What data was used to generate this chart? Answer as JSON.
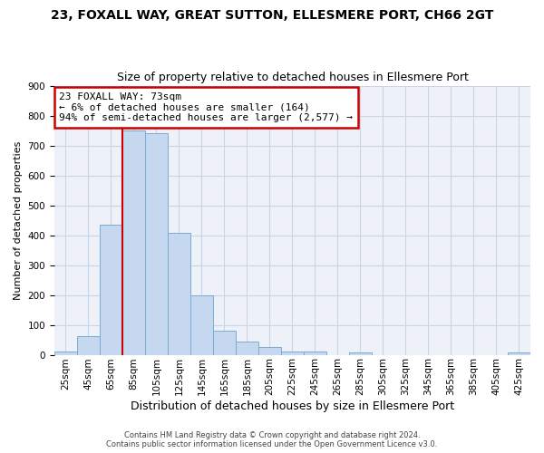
{
  "title1": "23, FOXALL WAY, GREAT SUTTON, ELLESMERE PORT, CH66 2GT",
  "title2": "Size of property relative to detached houses in Ellesmere Port",
  "xlabel": "Distribution of detached houses by size in Ellesmere Port",
  "ylabel": "Number of detached properties",
  "categories": [
    "25sqm",
    "45sqm",
    "65sqm",
    "85sqm",
    "105sqm",
    "125sqm",
    "145sqm",
    "165sqm",
    "185sqm",
    "205sqm",
    "225sqm",
    "245sqm",
    "265sqm",
    "285sqm",
    "305sqm",
    "325sqm",
    "345sqm",
    "365sqm",
    "385sqm",
    "405sqm",
    "425sqm"
  ],
  "values": [
    10,
    62,
    435,
    750,
    740,
    408,
    198,
    80,
    43,
    26,
    10,
    10,
    0,
    8,
    0,
    0,
    0,
    0,
    0,
    0,
    7
  ],
  "bar_color": "#c5d8f0",
  "bar_edge_color": "#7aadd4",
  "annotation_line0": "23 FOXALL WAY: 73sqm",
  "annotation_line1": "← 6% of detached houses are smaller (164)",
  "annotation_line2": "94% of semi-detached houses are larger (2,577) →",
  "vline_color": "#cc0000",
  "annotation_box_edgecolor": "#cc0000",
  "grid_color": "#c8d4e8",
  "background_color": "#eef2f8",
  "ylim": [
    0,
    900
  ],
  "yticks": [
    0,
    100,
    200,
    300,
    400,
    500,
    600,
    700,
    800,
    900
  ],
  "footer1": "Contains HM Land Registry data © Crown copyright and database right 2024.",
  "footer2": "Contains public sector information licensed under the Open Government Licence v3.0.",
  "title1_fontsize": 10,
  "title2_fontsize": 9,
  "ylabel_fontsize": 8,
  "xlabel_fontsize": 9,
  "tick_fontsize": 7.5,
  "footer_fontsize": 6,
  "annot_fontsize": 8,
  "vline_x_index": 2.5
}
